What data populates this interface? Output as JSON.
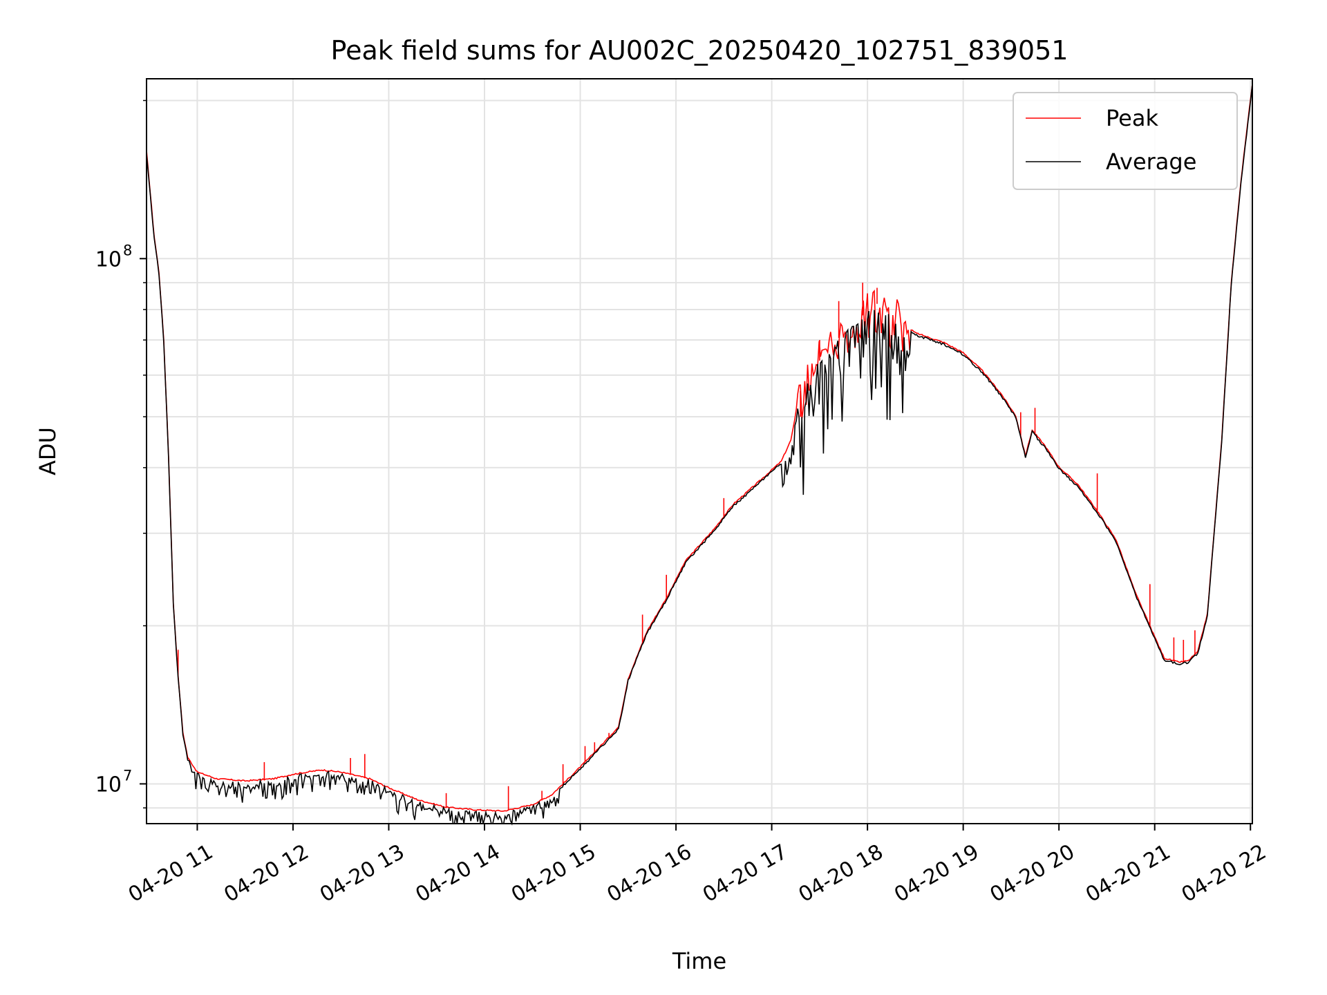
{
  "chart_data": {
    "type": "line",
    "title": "Peak field sums for AU002C_20250420_102751_839051",
    "xlabel": "Time",
    "ylabel": "ADU",
    "x_axis": {
      "type": "time",
      "range_hours": [
        10.47,
        22.02
      ],
      "ticks": [
        {
          "hour": 11,
          "label": "04-20 11"
        },
        {
          "hour": 12,
          "label": "04-20 12"
        },
        {
          "hour": 13,
          "label": "04-20 13"
        },
        {
          "hour": 14,
          "label": "04-20 14"
        },
        {
          "hour": 15,
          "label": "04-20 15"
        },
        {
          "hour": 16,
          "label": "04-20 16"
        },
        {
          "hour": 17,
          "label": "04-20 17"
        },
        {
          "hour": 18,
          "label": "04-20 18"
        },
        {
          "hour": 19,
          "label": "04-20 19"
        },
        {
          "hour": 20,
          "label": "04-20 20"
        },
        {
          "hour": 21,
          "label": "04-20 21"
        },
        {
          "hour": 22,
          "label": "04-20 22"
        }
      ],
      "tick_rotation_deg": 30
    },
    "y_axis": {
      "scale": "log",
      "range": [
        8400000,
        220000000
      ],
      "major_ticks": [
        {
          "value": 10000000,
          "base": "10",
          "exponent": "7"
        },
        {
          "value": 100000000,
          "base": "10",
          "exponent": "8"
        }
      ]
    },
    "grid": true,
    "legend": {
      "placement": "top-right",
      "entries": [
        {
          "name": "Peak",
          "color": "#ff0000"
        },
        {
          "name": "Average",
          "color": "#000000"
        }
      ]
    },
    "series": [
      {
        "name": "Average",
        "color": "#000000",
        "points": [
          [
            10.47,
            160000000
          ],
          [
            10.55,
            110000000
          ],
          [
            10.6,
            94000000
          ],
          [
            10.65,
            70000000
          ],
          [
            10.7,
            42000000
          ],
          [
            10.75,
            22000000
          ],
          [
            10.8,
            16000000
          ],
          [
            10.85,
            12500000
          ],
          [
            10.9,
            11200000
          ],
          [
            11.0,
            10500000
          ],
          [
            11.2,
            10200000
          ],
          [
            11.5,
            10100000
          ],
          [
            11.8,
            10200000
          ],
          [
            12.0,
            10400000
          ],
          [
            12.3,
            10600000
          ],
          [
            12.5,
            10500000
          ],
          [
            12.8,
            10200000
          ],
          [
            13.0,
            9800000
          ],
          [
            13.3,
            9300000
          ],
          [
            13.6,
            9000000
          ],
          [
            13.9,
            8900000
          ],
          [
            14.2,
            8850000
          ],
          [
            14.5,
            9100000
          ],
          [
            14.7,
            9500000
          ],
          [
            14.9,
            10300000
          ],
          [
            15.1,
            11200000
          ],
          [
            15.4,
            12800000
          ],
          [
            15.5,
            15800000
          ],
          [
            15.7,
            19500000
          ],
          [
            15.9,
            22500000
          ],
          [
            16.1,
            26500000
          ],
          [
            16.4,
            30500000
          ],
          [
            16.6,
            34000000
          ],
          [
            16.9,
            38000000
          ],
          [
            17.1,
            41000000
          ],
          [
            17.2,
            45000000
          ],
          [
            17.3,
            56000000
          ],
          [
            17.45,
            62000000
          ],
          [
            17.6,
            68000000
          ],
          [
            17.75,
            72000000
          ],
          [
            17.9,
            76000000
          ],
          [
            18.0,
            80000000
          ],
          [
            18.1,
            82000000
          ],
          [
            18.25,
            78000000
          ],
          [
            18.5,
            72000000
          ],
          [
            18.8,
            69000000
          ],
          [
            19.0,
            66000000
          ],
          [
            19.2,
            61000000
          ],
          [
            19.4,
            55000000
          ],
          [
            19.55,
            50000000
          ],
          [
            19.65,
            42000000
          ],
          [
            19.72,
            47000000
          ],
          [
            19.85,
            44000000
          ],
          [
            20.0,
            40000000
          ],
          [
            20.2,
            37000000
          ],
          [
            20.4,
            33000000
          ],
          [
            20.6,
            29000000
          ],
          [
            20.8,
            23000000
          ],
          [
            21.0,
            19000000
          ],
          [
            21.1,
            17300000
          ],
          [
            21.25,
            17000000
          ],
          [
            21.35,
            17100000
          ],
          [
            21.45,
            17800000
          ],
          [
            21.55,
            21000000
          ],
          [
            21.7,
            45000000
          ],
          [
            21.8,
            90000000
          ],
          [
            21.9,
            140000000
          ],
          [
            22.02,
            215000000
          ]
        ]
      },
      {
        "name": "Peak",
        "color": "#ff0000",
        "points": [
          [
            10.47,
            160000000
          ],
          [
            10.55,
            110000000
          ],
          [
            10.6,
            94000000
          ],
          [
            10.65,
            70000000
          ],
          [
            10.7,
            42000000
          ],
          [
            10.75,
            22000000
          ],
          [
            10.8,
            16000000
          ],
          [
            10.85,
            12500000
          ],
          [
            10.9,
            11200000
          ],
          [
            11.0,
            10500000
          ],
          [
            11.2,
            10200000
          ],
          [
            11.5,
            10100000
          ],
          [
            11.8,
            10200000
          ],
          [
            12.0,
            10400000
          ],
          [
            12.3,
            10600000
          ],
          [
            12.5,
            10500000
          ],
          [
            12.8,
            10200000
          ],
          [
            13.0,
            9800000
          ],
          [
            13.3,
            9300000
          ],
          [
            13.6,
            9000000
          ],
          [
            13.9,
            8900000
          ],
          [
            14.2,
            8850000
          ],
          [
            14.5,
            9100000
          ],
          [
            14.7,
            9500000
          ],
          [
            14.9,
            10300000
          ],
          [
            15.1,
            11200000
          ],
          [
            15.4,
            12800000
          ],
          [
            15.5,
            15800000
          ],
          [
            15.7,
            19500000
          ],
          [
            15.9,
            22500000
          ],
          [
            16.1,
            26500000
          ],
          [
            16.4,
            30500000
          ],
          [
            16.6,
            34000000
          ],
          [
            16.9,
            38000000
          ],
          [
            17.1,
            41000000
          ],
          [
            17.2,
            45000000
          ],
          [
            17.3,
            56000000
          ],
          [
            17.45,
            62000000
          ],
          [
            17.6,
            68000000
          ],
          [
            17.75,
            72000000
          ],
          [
            17.9,
            76000000
          ],
          [
            18.0,
            80000000
          ],
          [
            18.1,
            82000000
          ],
          [
            18.25,
            78000000
          ],
          [
            18.5,
            72000000
          ],
          [
            18.8,
            69000000
          ],
          [
            19.0,
            66000000
          ],
          [
            19.2,
            61000000
          ],
          [
            19.4,
            55000000
          ],
          [
            19.55,
            50000000
          ],
          [
            19.65,
            42000000
          ],
          [
            19.72,
            47000000
          ],
          [
            19.85,
            44000000
          ],
          [
            20.0,
            40000000
          ],
          [
            20.2,
            37000000
          ],
          [
            20.4,
            33000000
          ],
          [
            20.6,
            29000000
          ],
          [
            20.8,
            23000000
          ],
          [
            21.0,
            19000000
          ],
          [
            21.1,
            17300000
          ],
          [
            21.25,
            17000000
          ],
          [
            21.35,
            17100000
          ],
          [
            21.45,
            17800000
          ],
          [
            21.55,
            21000000
          ],
          [
            21.7,
            45000000
          ],
          [
            21.8,
            90000000
          ],
          [
            21.9,
            140000000
          ],
          [
            22.02,
            215000000
          ]
        ],
        "spikes": [
          [
            10.8,
            18000000
          ],
          [
            11.7,
            11000000
          ],
          [
            12.6,
            11200000
          ],
          [
            12.75,
            11400000
          ],
          [
            13.6,
            9600000
          ],
          [
            14.25,
            9900000
          ],
          [
            14.6,
            9700000
          ],
          [
            14.82,
            10900000
          ],
          [
            15.05,
            11800000
          ],
          [
            15.15,
            12000000
          ],
          [
            15.3,
            12500000
          ],
          [
            15.65,
            21000000
          ],
          [
            15.9,
            25000000
          ],
          [
            16.5,
            35000000
          ],
          [
            17.3,
            50000000
          ],
          [
            17.5,
            70000000
          ],
          [
            17.7,
            83000000
          ],
          [
            17.95,
            90000000
          ],
          [
            18.1,
            88000000
          ],
          [
            19.6,
            51000000
          ],
          [
            19.75,
            52000000
          ],
          [
            20.4,
            39000000
          ],
          [
            20.95,
            24000000
          ],
          [
            21.2,
            19000000
          ],
          [
            21.3,
            18800000
          ],
          [
            21.42,
            19600000
          ]
        ]
      }
    ]
  }
}
